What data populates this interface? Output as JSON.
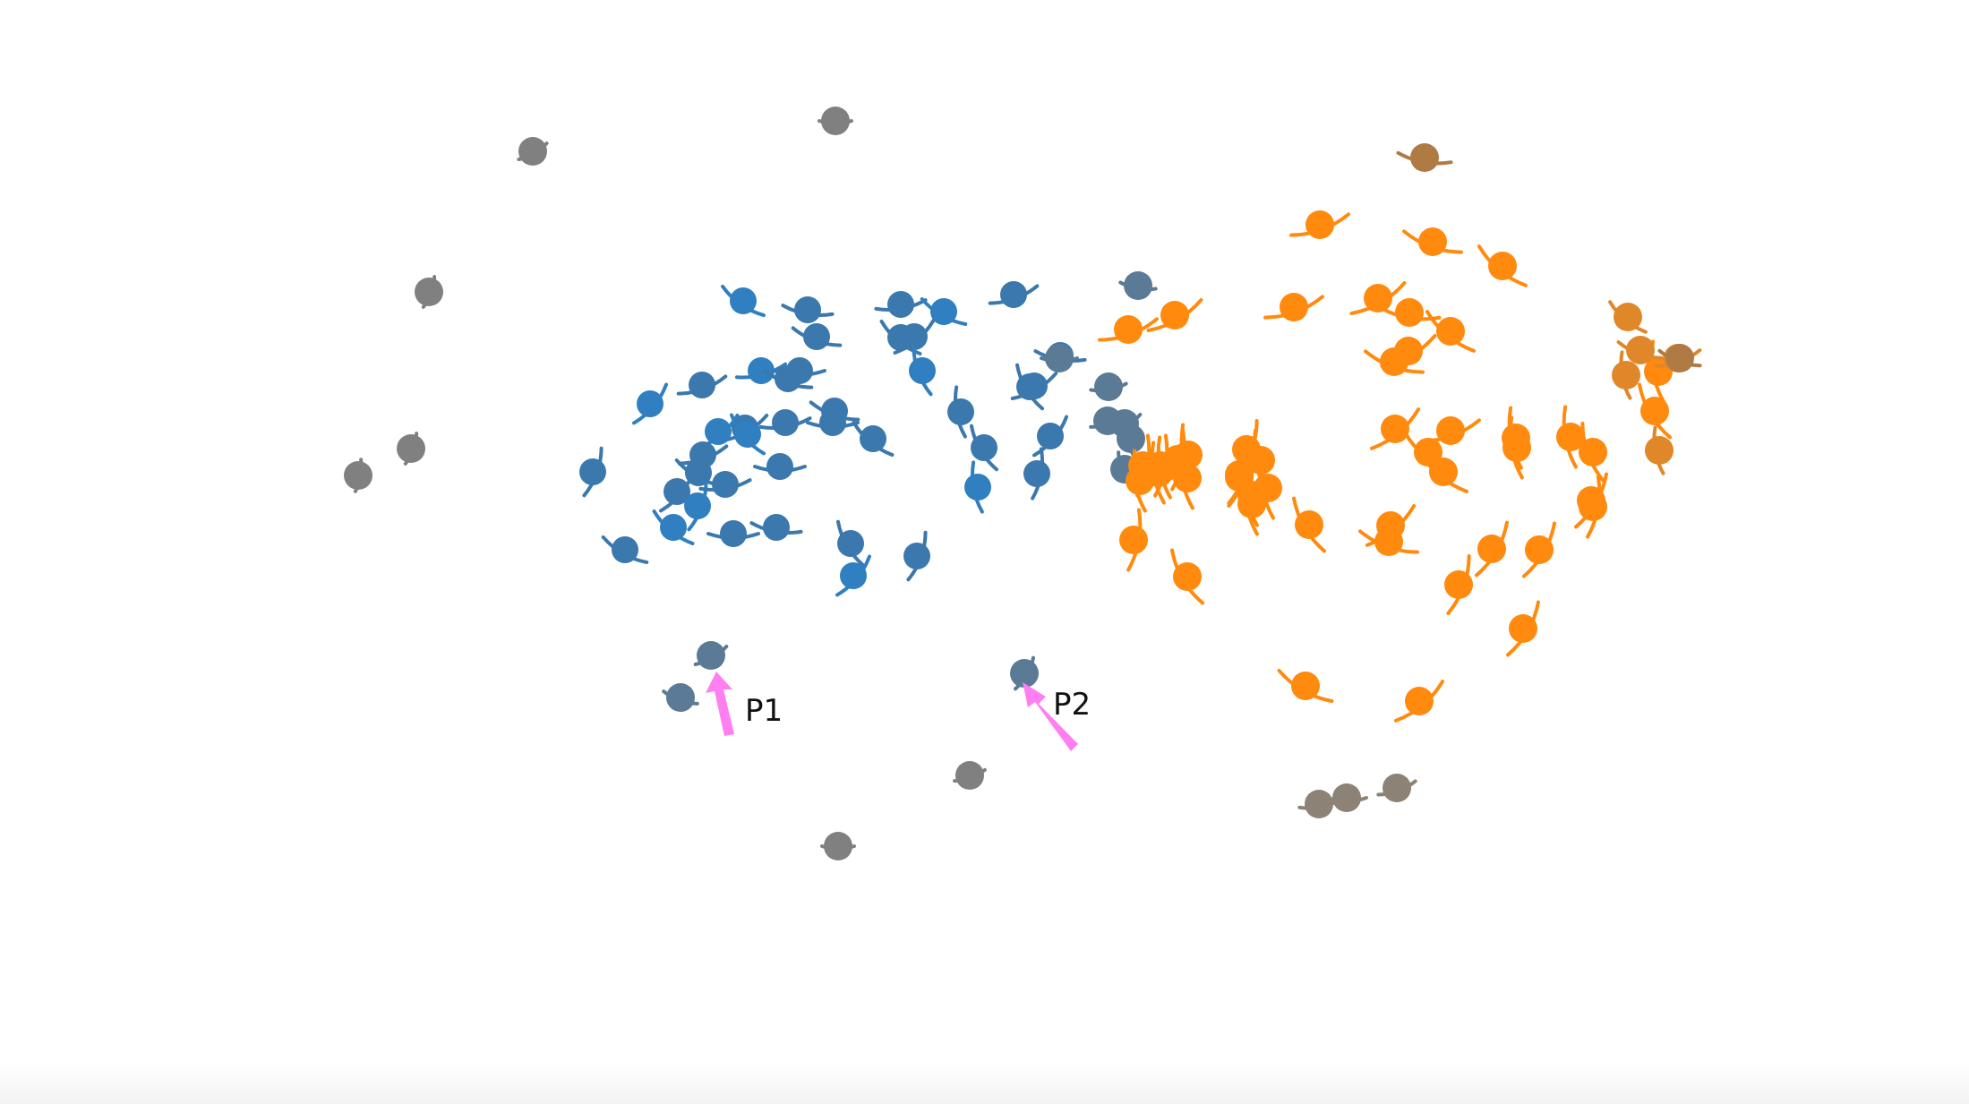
{
  "colors": {
    "blue": "#3b78ad",
    "blue_strong": "#2f7fc1",
    "blue_grey": "#5a7a95",
    "orange": "#ff8a0d",
    "orange_muted": "#e0872a",
    "brown": "#b07a45",
    "grey": "#808080",
    "warm_grey": "#8c8276",
    "arrow": "#ff7ff0",
    "background": "#ffffff"
  },
  "annotations": [
    {
      "id": "p1",
      "text": "P1"
    },
    {
      "id": "p2",
      "text": "P2"
    }
  ]
}
